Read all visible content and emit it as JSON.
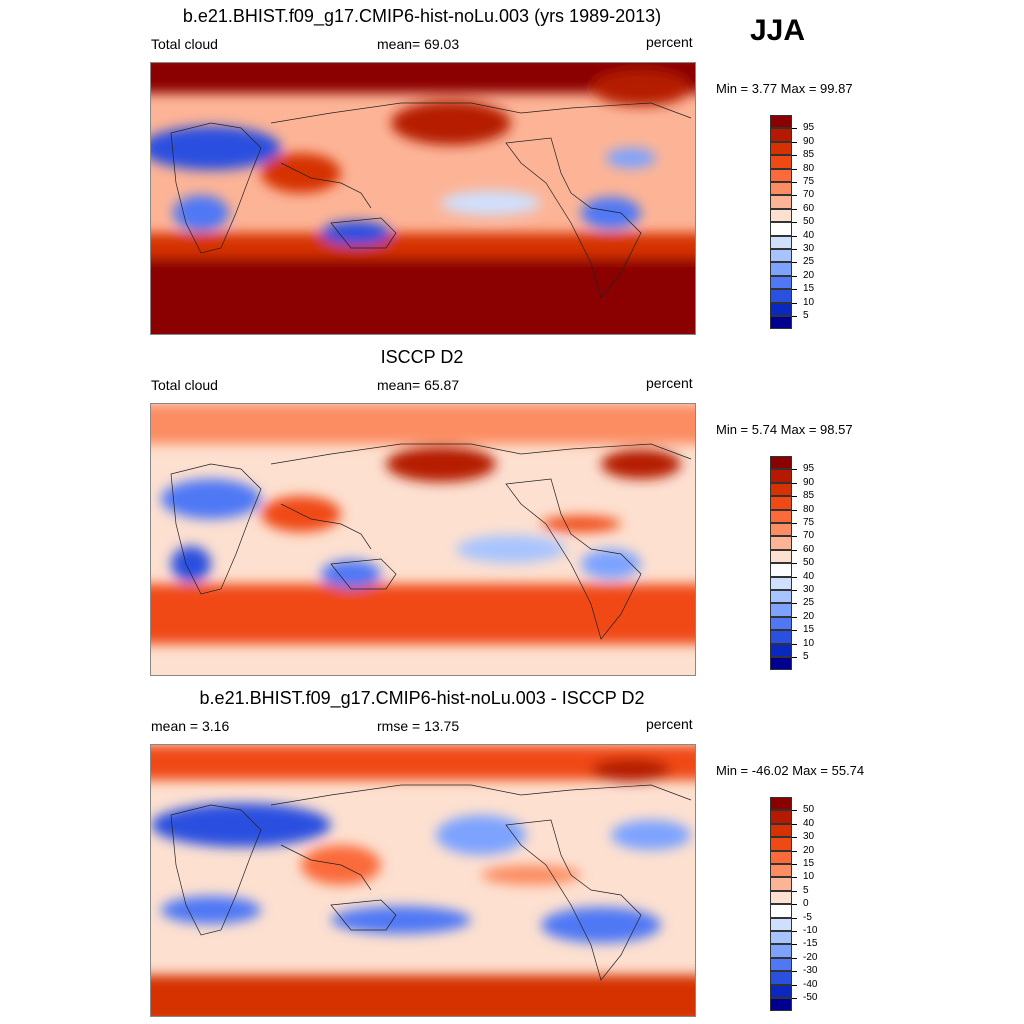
{
  "season": "JJA",
  "panels": [
    {
      "title": "b.e21.BHIST.f09_g17.CMIP6-hist-noLu.003 (yrs 1989-2013)",
      "left_label": "Total cloud",
      "center_label": "mean=  69.03",
      "right_label": "percent",
      "minmax": "Min =   3.77 Max =  99.87"
    },
    {
      "title": "ISCCP D2",
      "left_label": "Total cloud",
      "center_label": "mean=  65.87",
      "right_label": "percent",
      "minmax": "Min =   5.74 Max =  98.57"
    },
    {
      "title": "b.e21.BHIST.f09_g17.CMIP6-hist-noLu.003 - ISCCP D2",
      "left_label": "mean =   3.16",
      "center_label": "rmse =  13.75",
      "right_label": "percent",
      "minmax": "Min = -46.02 Max =  55.74"
    }
  ],
  "colorbars": [
    {
      "labels": [
        "95",
        "90",
        "85",
        "80",
        "75",
        "70",
        "60",
        "50",
        "40",
        "30",
        "25",
        "20",
        "15",
        "10",
        "5"
      ],
      "colors": [
        "#8b0000",
        "#b51a00",
        "#d63100",
        "#f04a14",
        "#fa6a3a",
        "#fc8c62",
        "#fdb496",
        "#fde0d0",
        "#ffffff",
        "#cfe0ff",
        "#a8c4ff",
        "#7da3ff",
        "#5078f5",
        "#2a50e0",
        "#0a28bd",
        "#000090"
      ]
    },
    {
      "labels": [
        "95",
        "90",
        "85",
        "80",
        "75",
        "70",
        "60",
        "50",
        "40",
        "30",
        "25",
        "20",
        "15",
        "10",
        "5"
      ],
      "colors": [
        "#8b0000",
        "#b51a00",
        "#d63100",
        "#f04a14",
        "#fa6a3a",
        "#fc8c62",
        "#fdb496",
        "#fde0d0",
        "#ffffff",
        "#cfe0ff",
        "#a8c4ff",
        "#7da3ff",
        "#5078f5",
        "#2a50e0",
        "#0a28bd",
        "#000090"
      ]
    },
    {
      "labels": [
        "50",
        "40",
        "30",
        "20",
        "15",
        "10",
        "5",
        "0",
        "-5",
        "-10",
        "-15",
        "-20",
        "-30",
        "-40",
        "-50"
      ],
      "colors": [
        "#8b0000",
        "#b51a00",
        "#d63100",
        "#f04a14",
        "#fa6a3a",
        "#fc8c62",
        "#fdb496",
        "#fde0d0",
        "#ffffff",
        "#cfe0ff",
        "#a8c4ff",
        "#7da3ff",
        "#5078f5",
        "#2a50e0",
        "#0a28bd",
        "#000090"
      ]
    }
  ]
}
